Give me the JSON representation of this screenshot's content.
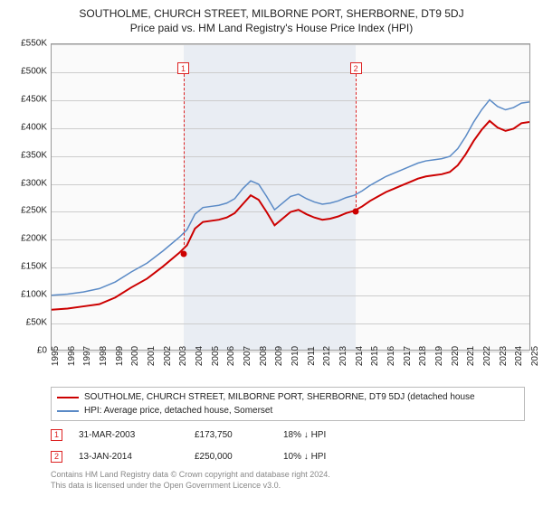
{
  "title": "SOUTHOLME, CHURCH STREET, MILBORNE PORT, SHERBORNE, DT9 5DJ",
  "subtitle": "Price paid vs. HM Land Registry's House Price Index (HPI)",
  "chart": {
    "type": "line",
    "background_color": "#fafafa",
    "shade_color": "#e9edf3",
    "grid_color": "#cccccc",
    "border_color": "#999999",
    "ylim": [
      0,
      550
    ],
    "ytick_step": 50,
    "y_unit_prefix": "£",
    "y_unit_suffix": "K",
    "x_years": [
      1995,
      1996,
      1997,
      1998,
      1999,
      2000,
      2001,
      2002,
      2003,
      2004,
      2005,
      2006,
      2007,
      2008,
      2009,
      2010,
      2011,
      2012,
      2013,
      2014,
      2015,
      2016,
      2017,
      2018,
      2019,
      2020,
      2021,
      2022,
      2023,
      2024,
      2025
    ],
    "shade_start_year": 2003.24,
    "shade_end_year": 2014.03,
    "series": [
      {
        "name": "property",
        "color": "#cc0000",
        "width": 2,
        "label": "SOUTHOLME, CHURCH STREET, MILBORNE PORT, SHERBORNE, DT9 5DJ (detached house",
        "points": [
          [
            1995,
            72
          ],
          [
            1996,
            74
          ],
          [
            1997,
            78
          ],
          [
            1998,
            82
          ],
          [
            1999,
            94
          ],
          [
            2000,
            112
          ],
          [
            2001,
            128
          ],
          [
            2002,
            150
          ],
          [
            2003,
            174
          ],
          [
            2003.5,
            188
          ],
          [
            2004,
            218
          ],
          [
            2004.5,
            230
          ],
          [
            2005,
            232
          ],
          [
            2005.5,
            234
          ],
          [
            2006,
            238
          ],
          [
            2006.5,
            246
          ],
          [
            2007,
            262
          ],
          [
            2007.5,
            278
          ],
          [
            2008,
            270
          ],
          [
            2008.5,
            248
          ],
          [
            2009,
            224
          ],
          [
            2009.5,
            236
          ],
          [
            2010,
            248
          ],
          [
            2010.5,
            252
          ],
          [
            2011,
            244
          ],
          [
            2011.5,
            238
          ],
          [
            2012,
            234
          ],
          [
            2012.5,
            236
          ],
          [
            2013,
            240
          ],
          [
            2013.5,
            246
          ],
          [
            2014,
            250
          ],
          [
            2014.5,
            258
          ],
          [
            2015,
            268
          ],
          [
            2015.5,
            276
          ],
          [
            2016,
            284
          ],
          [
            2016.5,
            290
          ],
          [
            2017,
            296
          ],
          [
            2017.5,
            302
          ],
          [
            2018,
            308
          ],
          [
            2018.5,
            312
          ],
          [
            2019,
            314
          ],
          [
            2019.5,
            316
          ],
          [
            2020,
            320
          ],
          [
            2020.5,
            332
          ],
          [
            2021,
            352
          ],
          [
            2021.5,
            376
          ],
          [
            2022,
            396
          ],
          [
            2022.5,
            412
          ],
          [
            2023,
            400
          ],
          [
            2023.5,
            394
          ],
          [
            2024,
            398
          ],
          [
            2024.5,
            408
          ],
          [
            2025,
            410
          ]
        ]
      },
      {
        "name": "hpi",
        "color": "#5a8ac6",
        "width": 1.5,
        "label": "HPI: Average price, detached house, Somerset",
        "points": [
          [
            1995,
            98
          ],
          [
            1996,
            100
          ],
          [
            1997,
            104
          ],
          [
            1998,
            110
          ],
          [
            1999,
            122
          ],
          [
            2000,
            140
          ],
          [
            2001,
            156
          ],
          [
            2002,
            178
          ],
          [
            2003,
            202
          ],
          [
            2003.5,
            216
          ],
          [
            2004,
            244
          ],
          [
            2004.5,
            256
          ],
          [
            2005,
            258
          ],
          [
            2005.5,
            260
          ],
          [
            2006,
            264
          ],
          [
            2006.5,
            272
          ],
          [
            2007,
            290
          ],
          [
            2007.5,
            304
          ],
          [
            2008,
            298
          ],
          [
            2008.5,
            276
          ],
          [
            2009,
            252
          ],
          [
            2009.5,
            264
          ],
          [
            2010,
            276
          ],
          [
            2010.5,
            280
          ],
          [
            2011,
            272
          ],
          [
            2011.5,
            266
          ],
          [
            2012,
            262
          ],
          [
            2012.5,
            264
          ],
          [
            2013,
            268
          ],
          [
            2013.5,
            274
          ],
          [
            2014,
            278
          ],
          [
            2014.5,
            286
          ],
          [
            2015,
            296
          ],
          [
            2015.5,
            304
          ],
          [
            2016,
            312
          ],
          [
            2016.5,
            318
          ],
          [
            2017,
            324
          ],
          [
            2017.5,
            330
          ],
          [
            2018,
            336
          ],
          [
            2018.5,
            340
          ],
          [
            2019,
            342
          ],
          [
            2019.5,
            344
          ],
          [
            2020,
            348
          ],
          [
            2020.5,
            362
          ],
          [
            2021,
            384
          ],
          [
            2021.5,
            410
          ],
          [
            2022,
            432
          ],
          [
            2022.5,
            450
          ],
          [
            2023,
            438
          ],
          [
            2023.5,
            432
          ],
          [
            2024,
            436
          ],
          [
            2024.5,
            444
          ],
          [
            2025,
            446
          ]
        ]
      }
    ],
    "markers": [
      {
        "n": "1",
        "year": 2003.24,
        "value": 174,
        "box_top": 0.06
      },
      {
        "n": "2",
        "year": 2014.03,
        "value": 250,
        "box_top": 0.06
      }
    ]
  },
  "legend": {
    "rows": [
      {
        "color": "#cc0000",
        "label": "SOUTHOLME, CHURCH STREET, MILBORNE PORT, SHERBORNE, DT9 5DJ (detached house"
      },
      {
        "color": "#5a8ac6",
        "label": "HPI: Average price, detached house, Somerset"
      }
    ]
  },
  "sales": [
    {
      "n": "1",
      "date": "31-MAR-2003",
      "price": "£173,750",
      "diff": "18% ↓ HPI"
    },
    {
      "n": "2",
      "date": "13-JAN-2014",
      "price": "£250,000",
      "diff": "10% ↓ HPI"
    }
  ],
  "footer": {
    "line1": "Contains HM Land Registry data © Crown copyright and database right 2024.",
    "line2": "This data is licensed under the Open Government Licence v3.0."
  }
}
